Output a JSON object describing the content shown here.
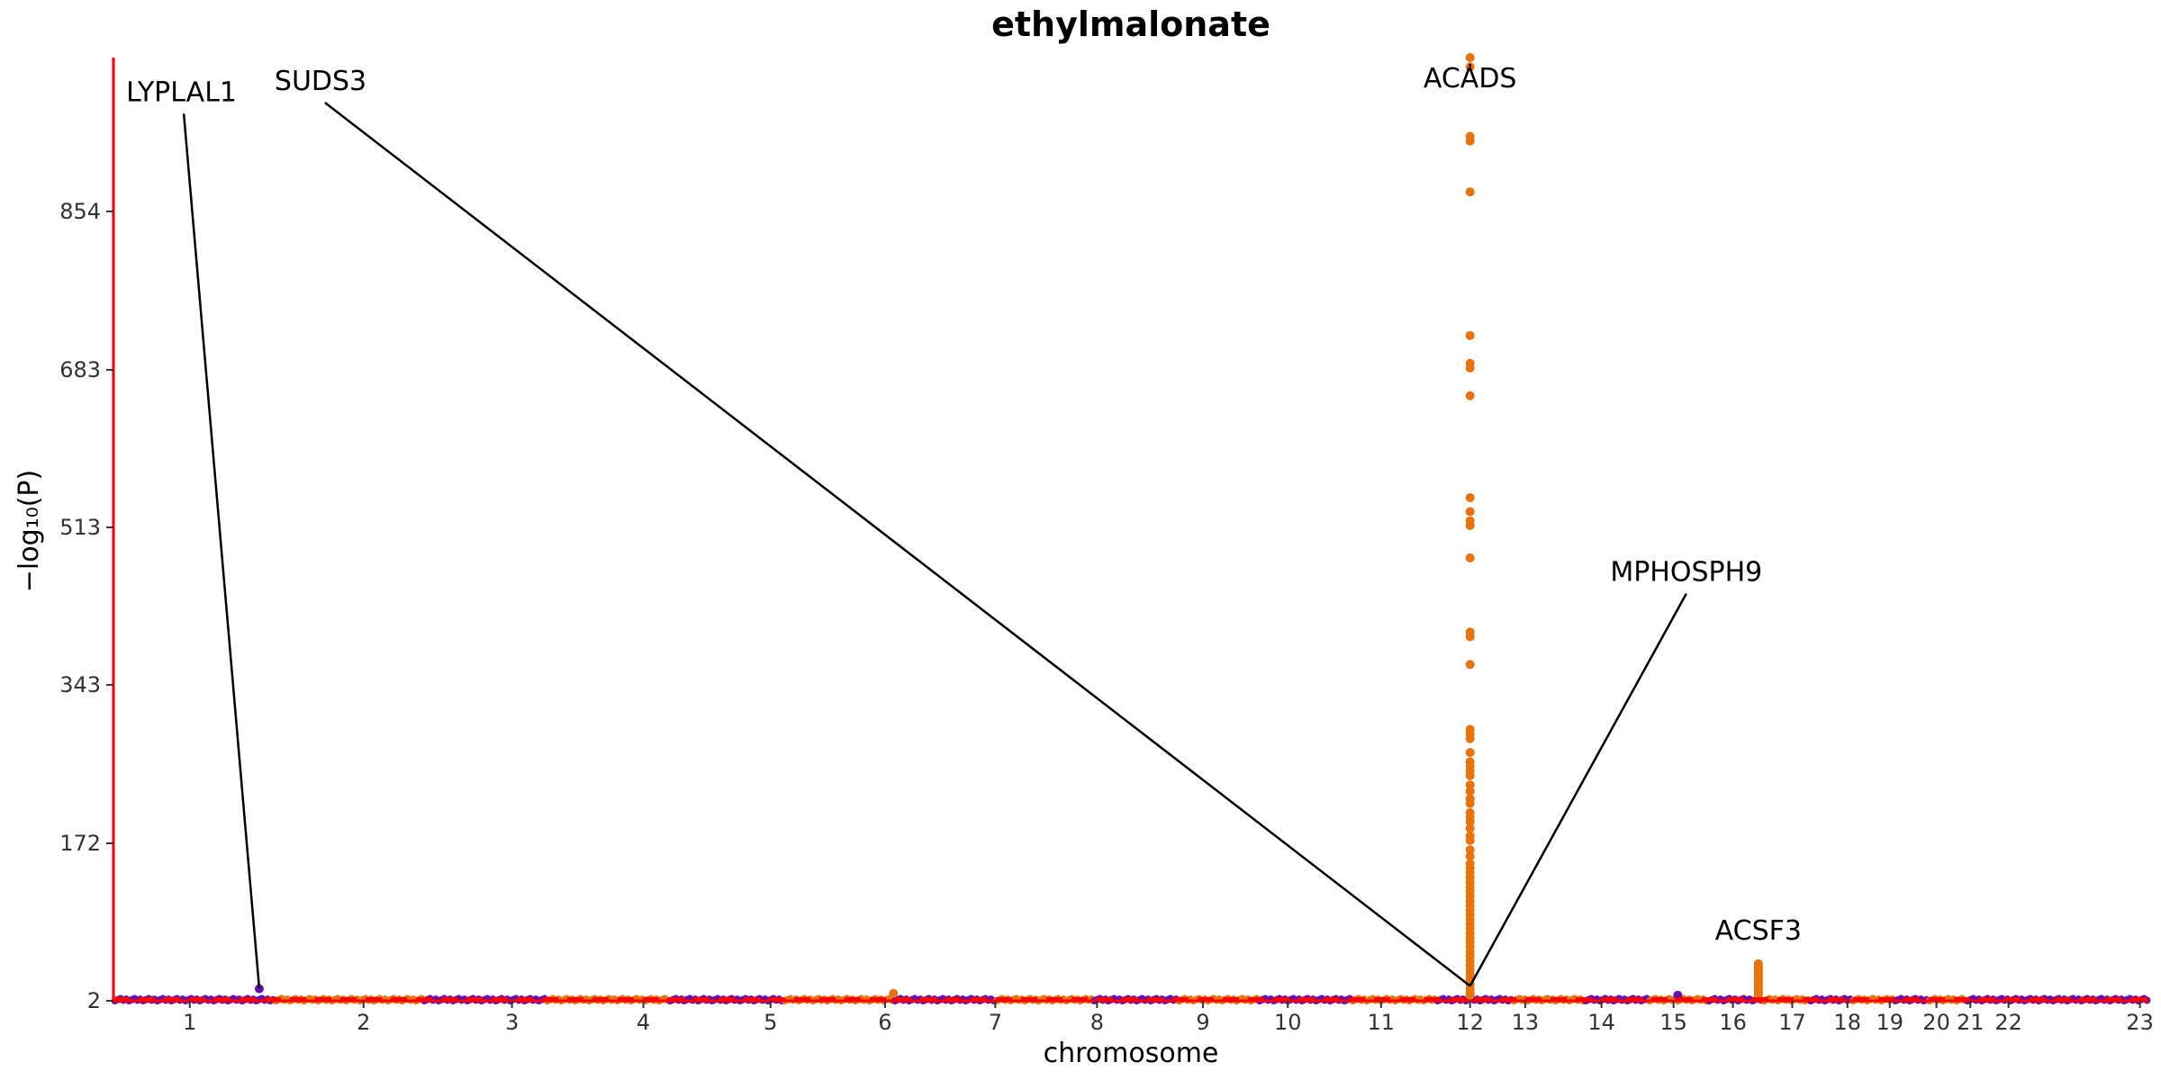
{
  "chart_data": {
    "type": "scatter",
    "title": "ethylmalonate",
    "xlabel": "chromosome",
    "ylabel": "−log₁₀(P)",
    "ylim": [
      2,
      1020
    ],
    "y_ticks": [
      2,
      172,
      343,
      513,
      683,
      854
    ],
    "x_positions": [
      0,
      24
    ],
    "chromosomes": [
      {
        "label": "1",
        "start": 0,
        "end": 1.9
      },
      {
        "label": "2",
        "start": 1.9,
        "end": 3.65
      },
      {
        "label": "3",
        "start": 3.65,
        "end": 5.1
      },
      {
        "label": "4",
        "start": 5.1,
        "end": 6.55
      },
      {
        "label": "5",
        "start": 6.55,
        "end": 7.9
      },
      {
        "label": "6",
        "start": 7.9,
        "end": 9.2
      },
      {
        "label": "7",
        "start": 9.2,
        "end": 10.4
      },
      {
        "label": "8",
        "start": 10.4,
        "end": 11.55
      },
      {
        "label": "9",
        "start": 11.55,
        "end": 12.55
      },
      {
        "label": "10",
        "start": 12.55,
        "end": 13.5
      },
      {
        "label": "11",
        "start": 13.5,
        "end": 14.6
      },
      {
        "label": "12",
        "start": 14.6,
        "end": 15.6
      },
      {
        "label": "13",
        "start": 15.6,
        "end": 16.5
      },
      {
        "label": "14",
        "start": 16.5,
        "end": 17.35
      },
      {
        "label": "15",
        "start": 17.35,
        "end": 18.1
      },
      {
        "label": "16",
        "start": 18.1,
        "end": 18.8
      },
      {
        "label": "17",
        "start": 18.8,
        "end": 19.45
      },
      {
        "label": "18",
        "start": 19.45,
        "end": 20.0
      },
      {
        "label": "19",
        "start": 20.0,
        "end": 20.5
      },
      {
        "label": "20",
        "start": 20.5,
        "end": 21.0
      },
      {
        "label": "21",
        "start": 21.0,
        "end": 21.4
      },
      {
        "label": "22",
        "start": 21.4,
        "end": 21.85
      },
      {
        "label": "23",
        "start": 21.85,
        "end": 24
      }
    ],
    "x_tick_positions": [
      0.9,
      2.95,
      4.7,
      6.25,
      7.75,
      9.1,
      10.4,
      11.6,
      12.85,
      13.85,
      14.95,
      16.0,
      16.65,
      17.55,
      18.4,
      19.1,
      19.8,
      20.45,
      20.95,
      21.5,
      21.9,
      22.35,
      23.9
    ],
    "colors": {
      "odd": "#6a0dad",
      "even": "#e8730c",
      "highlight": "#e8730c",
      "threshold": "#ff0000",
      "axis": "#ff0000"
    },
    "threshold_y": 4,
    "peaks": [
      {
        "x": 1.72,
        "y": 15,
        "color": "#6a0dad"
      },
      {
        "x": 9.2,
        "y": 10,
        "color": "#e8730c"
      },
      {
        "x": 18.45,
        "y": 8,
        "color": "#6a0dad"
      }
    ],
    "acads_column": {
      "x": 16.0,
      "y_values": [
        1020,
        1010,
        935,
        930,
        875,
        720,
        690,
        685,
        655,
        545,
        530,
        520,
        515,
        480,
        400,
        395,
        365,
        295,
        290,
        285,
        270,
        260,
        255,
        250,
        245,
        235,
        228,
        220,
        215,
        205,
        200,
        195,
        188,
        180,
        175,
        165,
        158,
        150,
        145,
        140,
        135,
        130,
        125,
        120,
        115,
        110,
        105,
        100,
        95,
        90,
        85,
        80,
        75,
        70,
        65,
        60,
        55,
        50,
        45,
        40,
        35,
        30,
        25,
        20,
        15,
        12,
        10,
        8
      ]
    },
    "acsf3_column": {
      "x": 19.4,
      "y_values": [
        42,
        40,
        38,
        36,
        34,
        32,
        30,
        28,
        26,
        24,
        22,
        20,
        18,
        16,
        14,
        12,
        10,
        8,
        6
      ]
    },
    "annotations": [
      {
        "label": "LYPLAL1",
        "point_x": 1.72,
        "point_y": 15,
        "text_anchor": "start",
        "label_x": 0.15,
        "label_y": 973
      },
      {
        "label": "SUDS3",
        "point_x": 16.0,
        "point_y": 18,
        "text_anchor": "start",
        "label_x": 1.9,
        "label_y": 985
      },
      {
        "label": "ACADS",
        "point_x": 16.0,
        "point_y": 1010,
        "text_anchor": "middle",
        "label_x": 16.0,
        "label_y": 988
      },
      {
        "label": "MPHOSPH9",
        "point_x": 16.0,
        "point_y": 18,
        "text_anchor": "middle",
        "label_x": 18.55,
        "label_y": 455
      },
      {
        "label": "ACSF3",
        "point_x": 19.4,
        "point_y": 42,
        "text_anchor": "middle",
        "label_x": 19.4,
        "label_y": 68
      }
    ]
  }
}
